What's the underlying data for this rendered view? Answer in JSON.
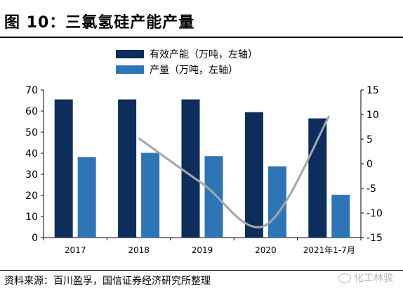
{
  "figure": {
    "title": "图 10：三氯氢硅产能产量",
    "source": "资料来源：百川盈孚，国信证券经济研究所整理",
    "watermark": "化工林骏"
  },
  "colors": {
    "capacity": "#0d2e5c",
    "output": "#2e75b6",
    "yoy": "#a6a6a6"
  },
  "chart_data": {
    "type": "bar",
    "categories": [
      "2017",
      "2018",
      "2019",
      "2020",
      "2021年1-7月"
    ],
    "series": [
      {
        "name": "有效产能（万吨，左轴）",
        "type": "bar",
        "axis": "left",
        "values": [
          65.5,
          65.5,
          65.5,
          59.5,
          56.5
        ]
      },
      {
        "name": "产量（万吨，左轴）",
        "type": "bar",
        "axis": "left",
        "values": [
          38.2,
          40.2,
          38.6,
          33.8,
          20.3
        ]
      },
      {
        "name": "",
        "type": "line",
        "axis": "right",
        "values": [
          null,
          5.2,
          -4.0,
          -12.5,
          9.7
        ]
      }
    ],
    "ylim_left": [
      0,
      70
    ],
    "yticks_left": [
      0,
      10,
      20,
      30,
      40,
      50,
      60,
      70
    ],
    "ylim_right": [
      -15,
      15
    ],
    "yticks_right": [
      -15,
      -10,
      -5,
      0,
      5,
      10,
      15
    ],
    "legend_position": "top-center",
    "grid": false
  }
}
